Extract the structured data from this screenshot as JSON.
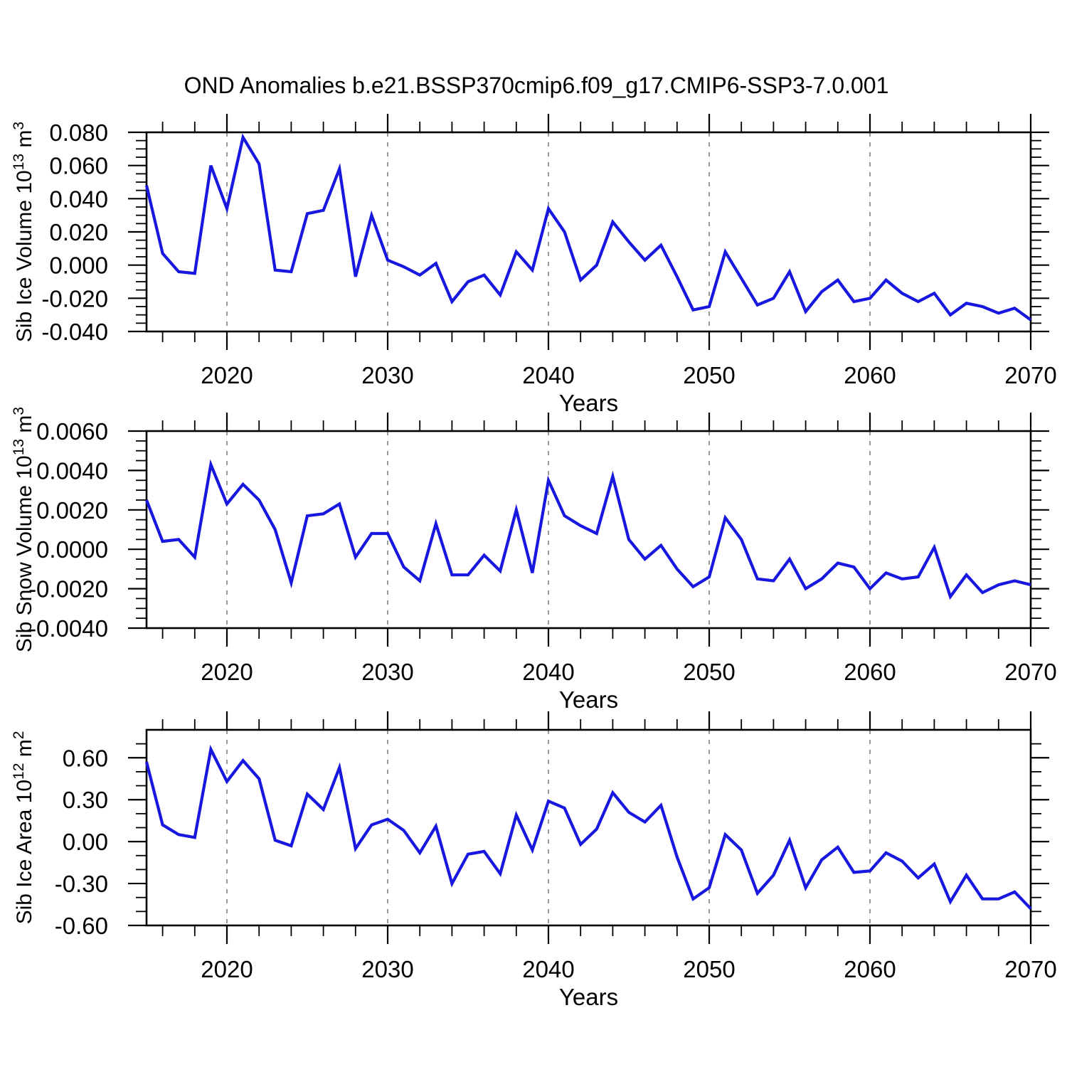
{
  "title": "OND Anomalies b.e21.BSSP370cmip6.f09_g17.CMIP6-SSP3-7.0.001",
  "colors": {
    "line": "#1717E0",
    "axis": "#000000",
    "gridline": "#999999",
    "background": "#FFFFFF"
  },
  "x_axis": {
    "label": "Years",
    "start": 2015,
    "end": 2070,
    "step": 1,
    "major_ticks": [
      2020,
      2030,
      2040,
      2050,
      2060,
      2070
    ],
    "major_tick_labels": [
      "2020",
      "2030",
      "2040",
      "2050",
      "2060",
      "2070"
    ],
    "minor_tick_step": 2,
    "gridline_years": [
      2020,
      2030,
      2040,
      2050,
      2060
    ],
    "grid_style": "dashed-vertical"
  },
  "years": [
    2015,
    2016,
    2017,
    2018,
    2019,
    2020,
    2021,
    2022,
    2023,
    2024,
    2025,
    2026,
    2027,
    2028,
    2029,
    2030,
    2031,
    2032,
    2033,
    2034,
    2035,
    2036,
    2037,
    2038,
    2039,
    2040,
    2041,
    2042,
    2043,
    2044,
    2045,
    2046,
    2047,
    2048,
    2049,
    2050,
    2051,
    2052,
    2053,
    2054,
    2055,
    2056,
    2057,
    2058,
    2059,
    2060,
    2061,
    2062,
    2063,
    2064,
    2065,
    2066,
    2067,
    2068,
    2069,
    2070
  ],
  "chart_data": [
    {
      "type": "line",
      "name": "sib-ice-volume",
      "ylabel": "Sib Ice Volume 10^13 m^3",
      "ylabel_parts": [
        {
          "t": "Sib Ice Volume 10",
          "sup": false
        },
        {
          "t": "13",
          "sup": true
        },
        {
          "t": " m",
          "sup": false
        },
        {
          "t": "3",
          "sup": true
        }
      ],
      "xlabel": "Years",
      "ylim": [
        -0.04,
        0.08
      ],
      "ymajor_step": 0.02,
      "yminor_step": 0.005,
      "ytick_labels": [
        "0.080",
        "0.060",
        "0.040",
        "0.020",
        "0.000",
        "-0.020",
        "-0.040"
      ],
      "values": [
        0.048,
        0.007,
        -0.004,
        -0.005,
        0.06,
        0.034,
        0.077,
        0.061,
        -0.003,
        -0.004,
        0.031,
        0.033,
        0.058,
        -0.007,
        0.03,
        0.003,
        -0.001,
        -0.006,
        0.001,
        -0.022,
        -0.01,
        -0.006,
        -0.018,
        0.008,
        -0.003,
        0.034,
        0.02,
        -0.009,
        0.0,
        0.026,
        0.014,
        0.003,
        0.012,
        -0.007,
        -0.027,
        -0.025,
        0.008,
        -0.008,
        -0.024,
        -0.02,
        -0.004,
        -0.028,
        -0.016,
        -0.009,
        -0.022,
        -0.02,
        -0.009,
        -0.017,
        -0.022,
        -0.017,
        -0.03,
        -0.023,
        -0.025,
        -0.029,
        -0.026,
        -0.033
      ]
    },
    {
      "type": "line",
      "name": "sib-snow-volume",
      "ylabel": "Sib Snow Volume 10^13 m^3",
      "ylabel_parts": [
        {
          "t": "Sib Snow Volume 10",
          "sup": false
        },
        {
          "t": "13",
          "sup": true
        },
        {
          "t": " m",
          "sup": false
        },
        {
          "t": "3",
          "sup": true
        }
      ],
      "xlabel": "Years",
      "ylim": [
        -0.004,
        0.006
      ],
      "ymajor_step": 0.002,
      "yminor_step": 0.0005,
      "ytick_labels": [
        "0.0060",
        "0.0040",
        "0.0020",
        "0.0000",
        "-0.0020",
        "-0.0040"
      ],
      "values": [
        0.0025,
        0.0004,
        0.0005,
        -0.0004,
        0.0043,
        0.0023,
        0.0033,
        0.0025,
        0.001,
        -0.0017,
        0.0017,
        0.0018,
        0.0023,
        -0.0004,
        0.0008,
        0.0008,
        -0.0009,
        -0.0016,
        0.0013,
        -0.0013,
        -0.0013,
        -0.0003,
        -0.0011,
        0.002,
        -0.0012,
        0.0035,
        0.0017,
        0.0012,
        0.0008,
        0.0037,
        0.0005,
        -0.0005,
        0.0002,
        -0.001,
        -0.0019,
        -0.0014,
        0.0016,
        0.0005,
        -0.0015,
        -0.0016,
        -0.0005,
        -0.002,
        -0.0015,
        -0.0007,
        -0.0009,
        -0.002,
        -0.0012,
        -0.0015,
        -0.0014,
        0.0001,
        -0.0024,
        -0.0013,
        -0.0022,
        -0.0018,
        -0.0016,
        -0.0018
      ]
    },
    {
      "type": "line",
      "name": "sib-ice-area",
      "ylabel": "Sib Ice Area 10^12 m^2",
      "ylabel_parts": [
        {
          "t": "Sib Ice Area 10",
          "sup": false
        },
        {
          "t": "12",
          "sup": true
        },
        {
          "t": " m",
          "sup": false
        },
        {
          "t": "2",
          "sup": true
        }
      ],
      "xlabel": "Years",
      "ylim": [
        -0.6,
        0.8
      ],
      "ymajor_step": 0.3,
      "yminor_step": 0.1,
      "ytick_labels": [
        "0.60",
        "0.30",
        "0.00",
        "-0.30",
        "-0.60"
      ],
      "values": [
        0.57,
        0.12,
        0.05,
        0.03,
        0.66,
        0.43,
        0.58,
        0.45,
        0.01,
        -0.03,
        0.34,
        0.23,
        0.53,
        -0.05,
        0.12,
        0.16,
        0.08,
        -0.08,
        0.11,
        -0.3,
        -0.09,
        -0.07,
        -0.23,
        0.19,
        -0.06,
        0.29,
        0.24,
        -0.02,
        0.09,
        0.35,
        0.21,
        0.14,
        0.26,
        -0.11,
        -0.41,
        -0.33,
        0.05,
        -0.06,
        -0.37,
        -0.24,
        0.01,
        -0.33,
        -0.13,
        -0.04,
        -0.22,
        -0.21,
        -0.08,
        -0.14,
        -0.26,
        -0.16,
        -0.43,
        -0.24,
        -0.41,
        -0.41,
        -0.36,
        -0.48
      ]
    }
  ]
}
